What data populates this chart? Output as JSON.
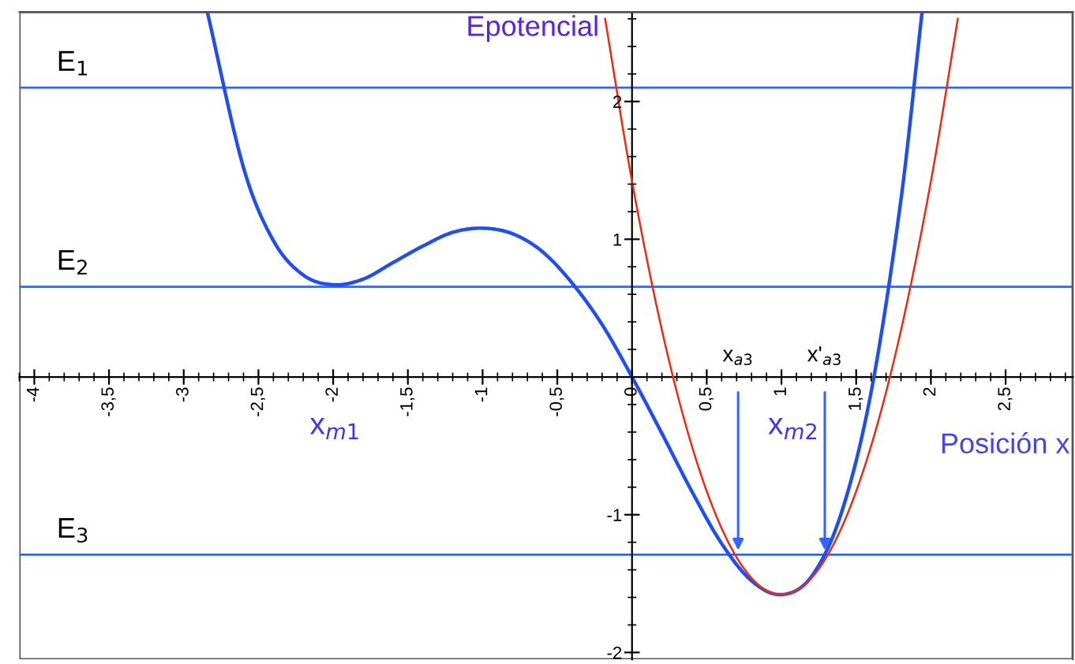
{
  "chart_data": {
    "type": "line",
    "xlabel": "Posición x",
    "ylabel": "Epotencial",
    "series": [
      {
        "color": "#1f4fee",
        "x": [
          -2.84,
          -2.6,
          -2.4,
          -2.2,
          -2.0,
          -1.8,
          -1.6,
          -1.4,
          -1.2,
          -1.0,
          -0.8,
          -0.6,
          -0.4,
          -0.2,
          0,
          0.2,
          0.4,
          0.6,
          0.8,
          1.0,
          1.2,
          1.4,
          1.6,
          1.8,
          1.94
        ],
        "values": [
          2.64,
          1.52,
          0.99,
          0.74,
          0.67,
          0.71,
          0.83,
          0.95,
          1.05,
          1.08,
          1.04,
          0.91,
          0.68,
          0.38,
          0,
          -0.41,
          -0.83,
          -1.21,
          -1.48,
          -1.58,
          -1.45,
          -0.99,
          -0.11,
          1.29,
          2.64
        ]
      },
      {
        "color": "#ee2a10",
        "x": [
          -0.18,
          0,
          0.2,
          0.4,
          0.6,
          0.8,
          1.0,
          1.2,
          1.4,
          1.6,
          1.8,
          2.0,
          2.18
        ],
        "values": [
          2.6,
          1.42,
          0.34,
          -0.5,
          -1.1,
          -1.46,
          -1.58,
          -1.46,
          -1.1,
          -0.5,
          0.34,
          1.42,
          2.6
        ]
      }
    ],
    "ref_lines": [
      {
        "axis": "y",
        "value": 2.1,
        "label": "E$_{1}$",
        "color": "#3366ee"
      },
      {
        "axis": "y",
        "value": 0.655,
        "label": "E$_{2}$",
        "color": "#3366ee"
      },
      {
        "axis": "y",
        "value": -1.29,
        "label": "E$_{3}$",
        "color": "#3366ee"
      }
    ],
    "annotations": [
      "x$_{m1}$",
      "x$_{m2}$",
      {
        "text": "x$_{a3}$",
        "x": 0.71,
        "y": -1.29
      },
      {
        "text": "x'$_{a3}$",
        "x": 1.29,
        "y": -1.29
      }
    ],
    "xlim": [
      -4.1,
      2.95
    ],
    "ylim": [
      -2.05,
      2.65
    ],
    "xticks": [
      {
        "value": -4,
        "label": "-4"
      },
      {
        "value": -3.5,
        "label": "-3,5"
      },
      {
        "value": -3,
        "label": "-3"
      },
      {
        "value": -2.5,
        "label": "-2,5"
      },
      {
        "value": -2,
        "label": "-2"
      },
      {
        "value": -1.5,
        "label": "-1,5"
      },
      {
        "value": -1,
        "label": "-1"
      },
      {
        "value": -0.5,
        "label": "-0,5"
      },
      {
        "value": 0,
        "label": "0"
      },
      {
        "value": 0.5,
        "label": "0,5"
      },
      {
        "value": 1,
        "label": "1"
      },
      {
        "value": 1.5,
        "label": "1,5"
      },
      {
        "value": 2,
        "label": "2"
      },
      {
        "value": 2.5,
        "label": "2,5"
      }
    ],
    "yticks": [
      -2,
      -1,
      1,
      2
    ],
    "grid": false,
    "legend": false,
    "marker": "none",
    "line_style": "solid"
  }
}
